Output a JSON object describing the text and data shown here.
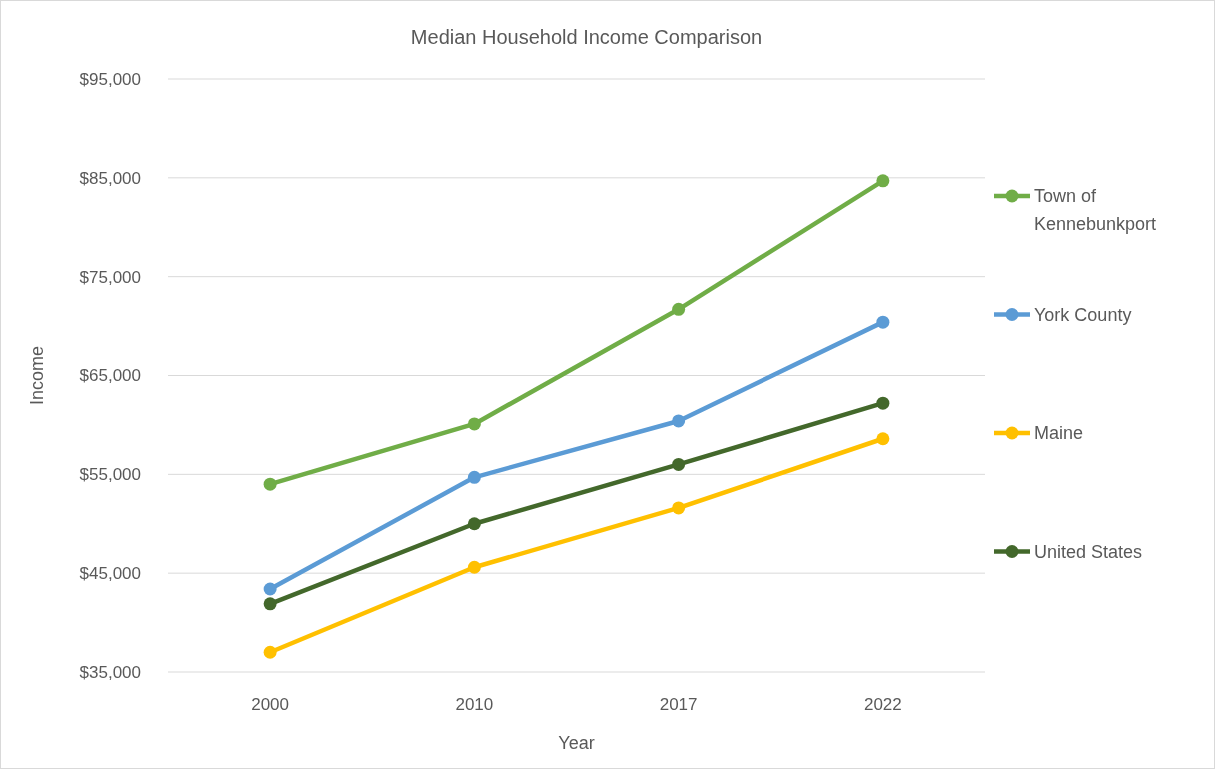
{
  "chart_data": {
    "type": "line",
    "title": "Median Household Income Comparison",
    "xlabel": "Year",
    "ylabel": "Income",
    "categories": [
      "2000",
      "2010",
      "2017",
      "2022"
    ],
    "series": [
      {
        "name": "Town of Kennebunkport",
        "color": "#70ad47",
        "values": [
          54000,
          60100,
          71700,
          84700
        ]
      },
      {
        "name": "York County",
        "color": "#5b9bd5",
        "values": [
          43400,
          54700,
          60400,
          70400
        ]
      },
      {
        "name": "Maine",
        "color": "#ffc000",
        "values": [
          37000,
          45600,
          51600,
          58600
        ]
      },
      {
        "name": "United States",
        "color": "#43682b",
        "values": [
          41900,
          50000,
          56000,
          62200
        ]
      }
    ],
    "ylim": [
      35000,
      95000
    ],
    "yticks": [
      {
        "value": 35000,
        "label": "$35,000"
      },
      {
        "value": 45000,
        "label": "$45,000"
      },
      {
        "value": 55000,
        "label": "$55,000"
      },
      {
        "value": 65000,
        "label": "$65,000"
      },
      {
        "value": 75000,
        "label": "$75,000"
      },
      {
        "value": 85000,
        "label": "$85,000"
      },
      {
        "value": 95000,
        "label": "$95,000"
      }
    ],
    "grid": "y",
    "legend": "right",
    "marker": "circle",
    "line_style": "solid"
  }
}
